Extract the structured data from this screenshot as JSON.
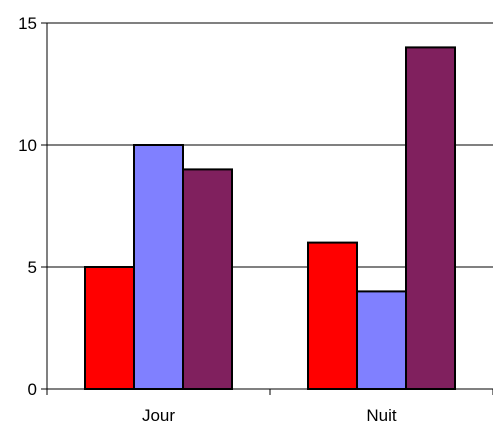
{
  "chart_data": {
    "type": "bar",
    "categories": [
      "Jour",
      "Nuit"
    ],
    "series": [
      {
        "values": [
          5,
          6
        ],
        "color": "#ff0000"
      },
      {
        "values": [
          10,
          4
        ],
        "color": "#8080ff"
      },
      {
        "values": [
          9,
          14
        ],
        "color": "#80205e"
      }
    ],
    "yticks": [
      0,
      5,
      10,
      15
    ],
    "ylim": [
      0,
      15
    ],
    "grid": true,
    "legend": "none",
    "title": "",
    "xlabel": "",
    "ylabel": ""
  }
}
